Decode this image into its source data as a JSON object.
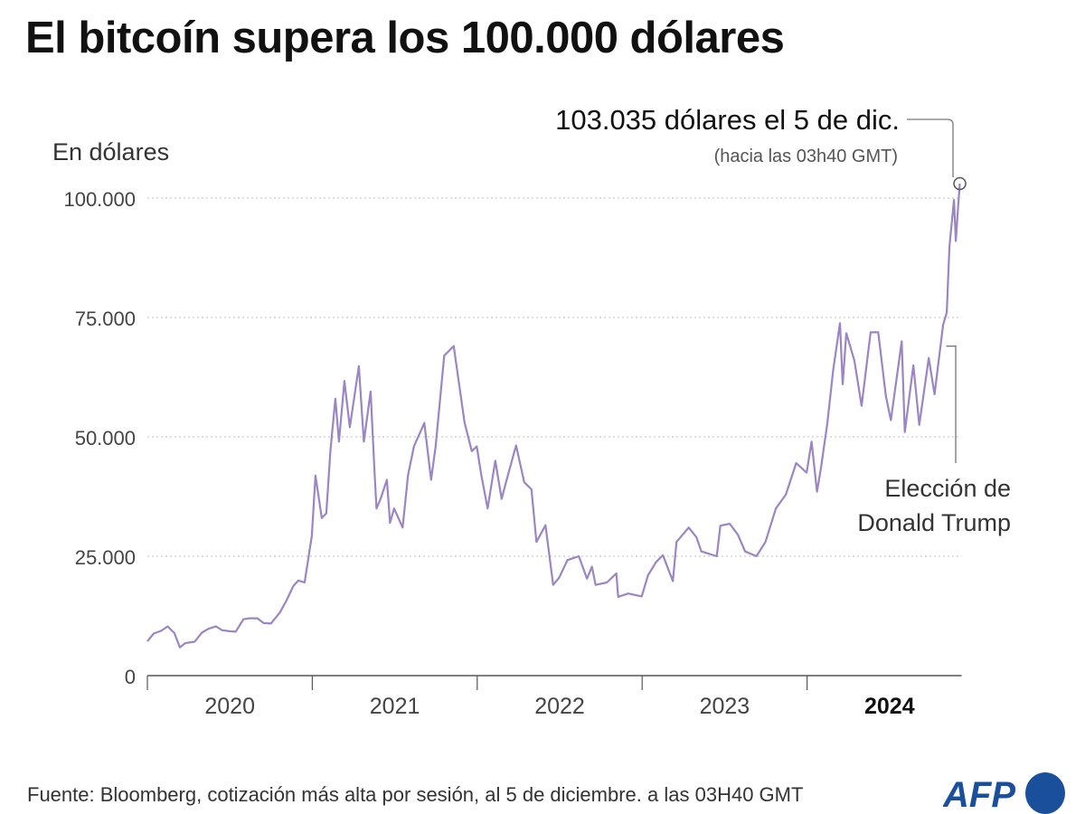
{
  "title": "El bitcoín supera los 100.000 dólares",
  "unit_label": "En dólares",
  "source": "Fuente: Bloomberg, cotización más alta por sesión, al 5 de diciembre. a las 03H40 GMT",
  "logo": "AFP",
  "colors": {
    "line": "#9b85c2",
    "grid": "#cccccc",
    "axis": "#555555",
    "annotation": "#777777",
    "logo": "#1a4f9c"
  },
  "chart_data": {
    "type": "line",
    "ylabel": "En dólares",
    "ylim": [
      0,
      105000
    ],
    "yticks": [
      0,
      25000,
      50000,
      75000,
      100000
    ],
    "ytick_labels": [
      "0",
      "25.000",
      "50.000",
      "75.000",
      "100.000"
    ],
    "xlim": [
      "2020-01-01",
      "2024-12-31"
    ],
    "xtick_labels": [
      "2020",
      "2021",
      "2022",
      "2023",
      "2024"
    ],
    "xtick_bold": "2024",
    "grid": true,
    "series": [
      {
        "points": [
          [
            "2020-01-01",
            7200
          ],
          [
            "2020-01-15",
            8800
          ],
          [
            "2020-02-01",
            9400
          ],
          [
            "2020-02-15",
            10300
          ],
          [
            "2020-03-01",
            8900
          ],
          [
            "2020-03-13",
            5900
          ],
          [
            "2020-03-25",
            6800
          ],
          [
            "2020-04-15",
            7100
          ],
          [
            "2020-05-01",
            9000
          ],
          [
            "2020-05-15",
            9800
          ],
          [
            "2020-06-01",
            10300
          ],
          [
            "2020-06-15",
            9500
          ],
          [
            "2020-07-01",
            9300
          ],
          [
            "2020-07-15",
            9200
          ],
          [
            "2020-08-01",
            11800
          ],
          [
            "2020-08-15",
            12000
          ],
          [
            "2020-09-01",
            12000
          ],
          [
            "2020-09-15",
            11000
          ],
          [
            "2020-10-01",
            10900
          ],
          [
            "2020-10-21",
            13200
          ],
          [
            "2020-11-05",
            15800
          ],
          [
            "2020-11-20",
            18800
          ],
          [
            "2020-12-01",
            19900
          ],
          [
            "2020-12-15",
            19500
          ],
          [
            "2020-12-31",
            29300
          ],
          [
            "2021-01-08",
            41900
          ],
          [
            "2021-01-22",
            33000
          ],
          [
            "2021-02-01",
            34000
          ],
          [
            "2021-02-10",
            47000
          ],
          [
            "2021-02-21",
            58000
          ],
          [
            "2021-03-01",
            49000
          ],
          [
            "2021-03-13",
            61700
          ],
          [
            "2021-03-25",
            52000
          ],
          [
            "2021-04-14",
            64800
          ],
          [
            "2021-04-25",
            49000
          ],
          [
            "2021-05-10",
            59500
          ],
          [
            "2021-05-19",
            42000
          ],
          [
            "2021-05-23",
            35000
          ],
          [
            "2021-06-01",
            37000
          ],
          [
            "2021-06-15",
            41000
          ],
          [
            "2021-06-22",
            32000
          ],
          [
            "2021-07-01",
            35000
          ],
          [
            "2021-07-20",
            31000
          ],
          [
            "2021-08-01",
            42000
          ],
          [
            "2021-08-14",
            48000
          ],
          [
            "2021-09-06",
            52900
          ],
          [
            "2021-09-21",
            41000
          ],
          [
            "2021-10-01",
            48000
          ],
          [
            "2021-10-20",
            67000
          ],
          [
            "2021-11-10",
            69000
          ],
          [
            "2021-11-25",
            59000
          ],
          [
            "2021-12-04",
            53000
          ],
          [
            "2021-12-20",
            47000
          ],
          [
            "2021-12-31",
            48000
          ],
          [
            "2022-01-10",
            42000
          ],
          [
            "2022-01-24",
            35000
          ],
          [
            "2022-02-10",
            45000
          ],
          [
            "2022-02-24",
            37000
          ],
          [
            "2022-03-10",
            42000
          ],
          [
            "2022-03-28",
            48200
          ],
          [
            "2022-04-15",
            40500
          ],
          [
            "2022-05-01",
            39000
          ],
          [
            "2022-05-12",
            28000
          ],
          [
            "2022-06-01",
            31500
          ],
          [
            "2022-06-18",
            19000
          ],
          [
            "2022-07-01",
            20500
          ],
          [
            "2022-07-20",
            24200
          ],
          [
            "2022-08-14",
            25000
          ],
          [
            "2022-09-01",
            20300
          ],
          [
            "2022-09-12",
            22800
          ],
          [
            "2022-09-20",
            19000
          ],
          [
            "2022-10-15",
            19500
          ],
          [
            "2022-11-05",
            21400
          ],
          [
            "2022-11-09",
            16500
          ],
          [
            "2022-12-01",
            17200
          ],
          [
            "2022-12-31",
            16600
          ],
          [
            "2023-01-14",
            21000
          ],
          [
            "2023-02-01",
            23800
          ],
          [
            "2023-02-16",
            25200
          ],
          [
            "2023-03-10",
            19800
          ],
          [
            "2023-03-18",
            28000
          ],
          [
            "2023-04-14",
            31000
          ],
          [
            "2023-05-01",
            29000
          ],
          [
            "2023-05-12",
            26000
          ],
          [
            "2023-06-15",
            25000
          ],
          [
            "2023-06-23",
            31400
          ],
          [
            "2023-07-14",
            31800
          ],
          [
            "2023-08-01",
            29500
          ],
          [
            "2023-08-17",
            26000
          ],
          [
            "2023-09-11",
            25000
          ],
          [
            "2023-10-01",
            28000
          ],
          [
            "2023-10-24",
            35000
          ],
          [
            "2023-11-15",
            37900
          ],
          [
            "2023-12-08",
            44500
          ],
          [
            "2023-12-31",
            42500
          ],
          [
            "2024-01-11",
            49000
          ],
          [
            "2024-01-23",
            38500
          ],
          [
            "2024-02-01",
            43500
          ],
          [
            "2024-02-15",
            52800
          ],
          [
            "2024-02-28",
            64000
          ],
          [
            "2024-03-14",
            73800
          ],
          [
            "2024-03-20",
            61000
          ],
          [
            "2024-03-28",
            71700
          ],
          [
            "2024-04-15",
            66000
          ],
          [
            "2024-05-01",
            56500
          ],
          [
            "2024-05-21",
            71900
          ],
          [
            "2024-06-07",
            71900
          ],
          [
            "2024-06-24",
            58500
          ],
          [
            "2024-07-05",
            53500
          ],
          [
            "2024-07-29",
            70000
          ],
          [
            "2024-08-05",
            51000
          ],
          [
            "2024-08-24",
            65000
          ],
          [
            "2024-09-06",
            52500
          ],
          [
            "2024-09-27",
            66500
          ],
          [
            "2024-10-10",
            58900
          ],
          [
            "2024-10-29",
            73500
          ],
          [
            "2024-11-06",
            76000
          ],
          [
            "2024-11-12",
            89900
          ],
          [
            "2024-11-22",
            99600
          ],
          [
            "2024-11-26",
            91000
          ],
          [
            "2024-12-01",
            98000
          ],
          [
            "2024-12-05",
            103035
          ]
        ]
      }
    ],
    "annotations": [
      {
        "text": "103.035 dólares el 5 de dic.",
        "subtext": "(hacia las 03h40 GMT)",
        "date": "2024-12-05",
        "value": 103035
      },
      {
        "text_lines": [
          "Elección de",
          "Donald Trump"
        ],
        "date": "2024-11-05",
        "value": 69000
      }
    ]
  }
}
